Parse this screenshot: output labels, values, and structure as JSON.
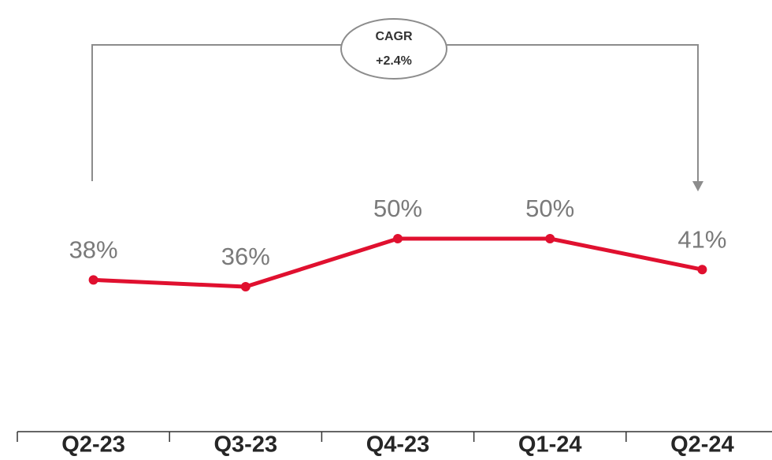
{
  "chart_data": {
    "type": "line",
    "categories": [
      "Q2-23",
      "Q3-23",
      "Q4-23",
      "Q1-24",
      "Q2-24"
    ],
    "series": [
      {
        "color": "#e0102f",
        "values": [
          38,
          36,
          50,
          50,
          41
        ],
        "value_labels": [
          "38%",
          "36%",
          "50%",
          "50%",
          "41%"
        ]
      }
    ],
    "annotation": [
      "CAGR",
      "+2.4%"
    ]
  }
}
